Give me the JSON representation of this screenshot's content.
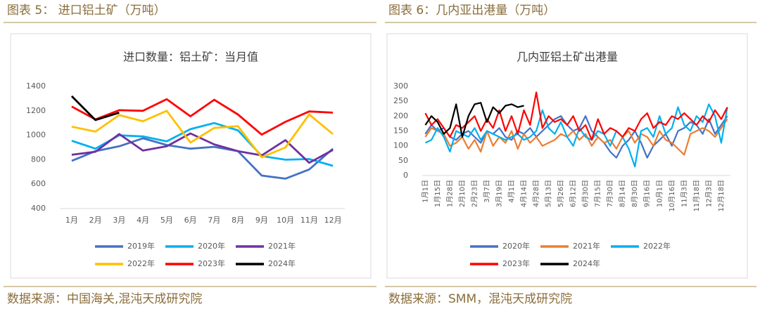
{
  "figures": [
    {
      "caption": "图表 5： 进口铝土矿（万吨）",
      "source": "数据来源：中国海关,混沌天成研究院"
    },
    {
      "caption": "图表 6：几内亚出港量（万吨）",
      "source": "数据来源：SMM，混沌天成研究院"
    }
  ],
  "chart_data": [
    {
      "type": "line",
      "title": "进口数量：铝土矿：当月值",
      "categories": [
        "1月",
        "2月",
        "3月",
        "4月",
        "5月",
        "6月",
        "7月",
        "8月",
        "9月",
        "10月",
        "11月",
        "12月"
      ],
      "ylim": [
        400,
        1400
      ],
      "yticks": [
        400,
        600,
        800,
        1000,
        1200,
        1400
      ],
      "series": [
        {
          "name": "2019年",
          "color": "#4472c4",
          "values": [
            790,
            870,
            910,
            975,
            920,
            890,
            905,
            870,
            670,
            645,
            720,
            890
          ]
        },
        {
          "name": "2020年",
          "color": "#00b0f0",
          "values": [
            955,
            890,
            1000,
            990,
            950,
            1050,
            1100,
            1040,
            830,
            800,
            805,
            750
          ]
        },
        {
          "name": "2021年",
          "color": "#7030a0",
          "values": [
            840,
            865,
            1010,
            875,
            910,
            1015,
            925,
            870,
            835,
            960,
            775,
            880
          ]
        },
        {
          "name": "2022年",
          "color": "#ffc000",
          "values": [
            1070,
            1030,
            1165,
            1115,
            1200,
            940,
            1060,
            1075,
            820,
            900,
            1170,
            1010
          ]
        },
        {
          "name": "2023年",
          "color": "#ff0000",
          "values": [
            1235,
            1130,
            1205,
            1200,
            1295,
            1155,
            1290,
            1170,
            1005,
            1110,
            1195,
            1185
          ]
        },
        {
          "name": "2024年",
          "color": "#000000",
          "values": [
            1320,
            1125,
            1185,
            null,
            null,
            null,
            null,
            null,
            null,
            null,
            null,
            null
          ]
        }
      ]
    },
    {
      "type": "line",
      "title": "几内亚铝土矿出港量",
      "categories": [
        "1月1日",
        null,
        "1月15日",
        null,
        "1月28日",
        null,
        "2月10日",
        null,
        "2月23日",
        null,
        "3月7日",
        null,
        "3月19日",
        null,
        "4月1日",
        null,
        "4月14日",
        null,
        "4月28日",
        null,
        "5月13日",
        null,
        "5月26日",
        null,
        "6月12日",
        null,
        "6月30日",
        null,
        "7月15日",
        null,
        "7月30日",
        null,
        "8月14日",
        null,
        "8月30日",
        null,
        "9月16日",
        null,
        "10月1日",
        null,
        "10月16日",
        null,
        "11月3日",
        null,
        "11月18日",
        null,
        "12月3日",
        null,
        "12月18日",
        null
      ],
      "ylim": [
        0,
        300
      ],
      "yticks": [
        0,
        50,
        100,
        150,
        200,
        250,
        300
      ],
      "series": [
        {
          "name": "2020年",
          "color": "#4472c4",
          "values": [
            140,
            170,
            150,
            160,
            130,
            120,
            140,
            150,
            130,
            110,
            150,
            140,
            160,
            130,
            120,
            150,
            140,
            160,
            130,
            150,
            170,
            190,
            200,
            170,
            150,
            160,
            200,
            150,
            130,
            110,
            80,
            60,
            100,
            120,
            150,
            110,
            60,
            100,
            120,
            140,
            100,
            150,
            160,
            180,
            170,
            140,
            190,
            140,
            170,
            200
          ]
        },
        {
          "name": "2021年",
          "color": "#ed7d31",
          "values": [
            130,
            160,
            150,
            140,
            100,
            110,
            130,
            90,
            120,
            80,
            150,
            100,
            130,
            110,
            150,
            90,
            140,
            110,
            130,
            100,
            110,
            120,
            140,
            130,
            150,
            120,
            140,
            100,
            130,
            110,
            120,
            90,
            130,
            150,
            110,
            140,
            130,
            100,
            150,
            120,
            110,
            90,
            70,
            140,
            150,
            160,
            150,
            130,
            160,
            190
          ]
        },
        {
          "name": "2022年",
          "color": "#00b0f0",
          "values": [
            110,
            120,
            160,
            130,
            80,
            150,
            140,
            130,
            160,
            120,
            150,
            140,
            130,
            120,
            130,
            140,
            120,
            130,
            150,
            220,
            160,
            140,
            180,
            130,
            100,
            160,
            130,
            120,
            150,
            140,
            100,
            150,
            130,
            90,
            30,
            150,
            160,
            130,
            200,
            140,
            160,
            230,
            170,
            150,
            200,
            180,
            240,
            200,
            110,
            230
          ]
        },
        {
          "name": "2023年",
          "color": "#ff0000",
          "values": [
            210,
            170,
            190,
            160,
            130,
            170,
            160,
            180,
            200,
            150,
            190,
            160,
            220,
            150,
            200,
            140,
            220,
            170,
            280,
            160,
            200,
            180,
            190,
            170,
            200,
            150,
            170,
            120,
            190,
            140,
            160,
            150,
            130,
            160,
            150,
            190,
            210,
            160,
            180,
            170,
            200,
            190,
            210,
            190,
            170,
            200,
            180,
            220,
            190,
            230
          ]
        },
        {
          "name": "2024年",
          "color": "#000000",
          "values": [
            170,
            200,
            180,
            140,
            160,
            240,
            130,
            200,
            240,
            245,
            180,
            230,
            210,
            235,
            240,
            230,
            235,
            null,
            null,
            null,
            null,
            null,
            null,
            null,
            null,
            null,
            null,
            null,
            null,
            null,
            null,
            null,
            null,
            null,
            null,
            null,
            null,
            null,
            null,
            null,
            null,
            null,
            null,
            null,
            null,
            null,
            null,
            null,
            null,
            null
          ]
        }
      ]
    }
  ]
}
